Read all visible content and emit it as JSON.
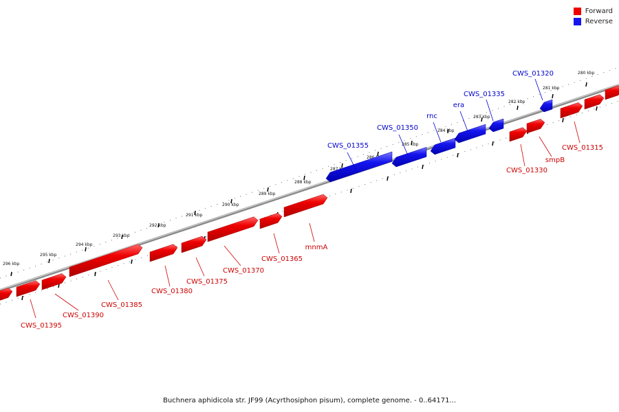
{
  "legend": {
    "forward": {
      "label": "Forward",
      "color": "#ee0000"
    },
    "reverse": {
      "label": "Reverse",
      "color": "#1515ee"
    }
  },
  "caption": "Buchnera aphidicola str. JF99 (Acyrthosiphon pisum), complete genome. - 0..64171...",
  "tick_labels": [
    "296 kbp",
    "295 kbp",
    "294 kbp",
    "293 kbp",
    "292 kbp",
    "291 kbp",
    "290 kbp",
    "289 kbp",
    "288 kbp",
    "287 kbp",
    "286 kbp",
    "285 kbp",
    "284 kbp",
    "283 kbp",
    "282 kbp",
    "281 kbp",
    "280 kbp"
  ],
  "genes": [
    {
      "label": "CWS_01395",
      "strand": "forward"
    },
    {
      "label": "CWS_01390",
      "strand": "forward"
    },
    {
      "label": "CWS_01385",
      "strand": "forward"
    },
    {
      "label": "CWS_01380",
      "strand": "forward"
    },
    {
      "label": "CWS_01375",
      "strand": "forward"
    },
    {
      "label": "CWS_01370",
      "strand": "forward"
    },
    {
      "label": "CWS_01365",
      "strand": "forward"
    },
    {
      "label": "mnmA",
      "strand": "forward"
    },
    {
      "label": "CWS_01355",
      "strand": "reverse"
    },
    {
      "label": "CWS_01350",
      "strand": "reverse"
    },
    {
      "label": "rnc",
      "strand": "reverse"
    },
    {
      "label": "era",
      "strand": "reverse"
    },
    {
      "label": "CWS_01335",
      "strand": "reverse"
    },
    {
      "label": "CWS_01330",
      "strand": "forward"
    },
    {
      "label": "smpB",
      "strand": "forward"
    },
    {
      "label": "CWS_01320",
      "strand": "reverse"
    },
    {
      "label": "CWS_01315",
      "strand": "forward"
    }
  ]
}
